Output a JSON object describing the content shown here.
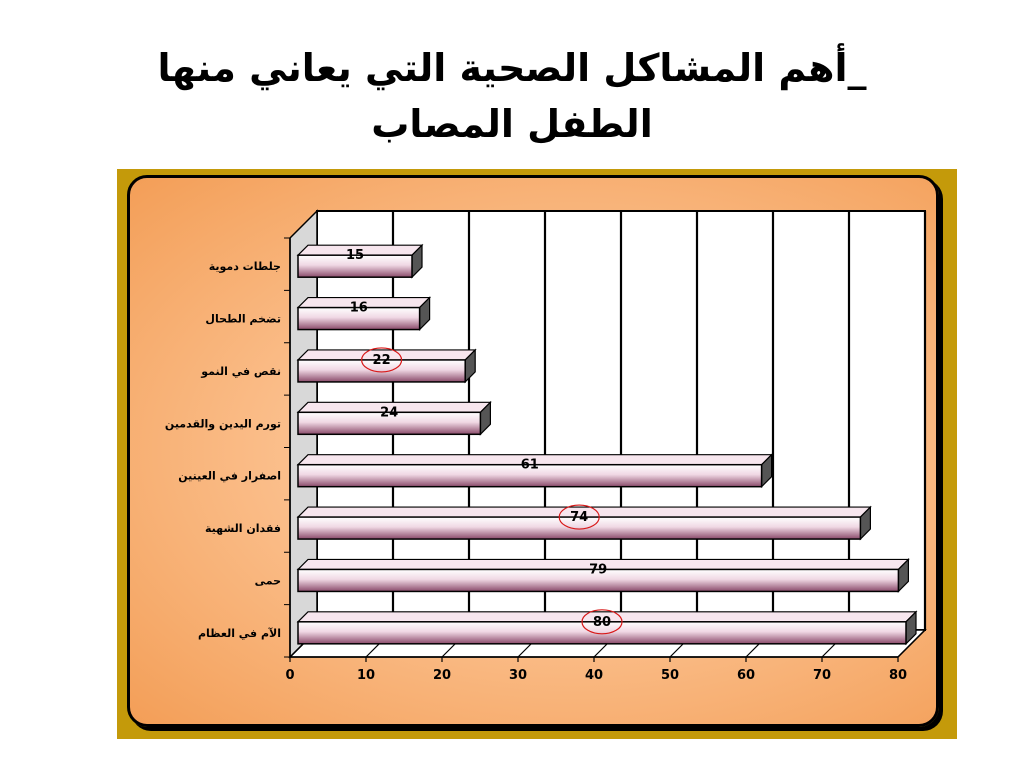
{
  "slide": {
    "title_line1": "أهم المشاكل الصحية التي يعاني منها",
    "title_dash": "_",
    "title_line2": "الطفل المصاب"
  },
  "colors": {
    "frame": "#c49a0a",
    "bar_light": "#ffffff",
    "bar_mid": "#f0d8e4",
    "bar_dark": "#8a4a6a",
    "bar_side": "#555555",
    "highlight_circle": "#d81818"
  },
  "chart_data": {
    "type": "bar",
    "orientation": "horizontal",
    "categories": [
      "جلطات دموية",
      "تضخم الطحال",
      "نقص في النمو",
      "تورم اليدين والقدمين",
      "اصفرار في العينين",
      "فقدان الشهية",
      "حمى",
      "الآم في العظام"
    ],
    "values": [
      15,
      16,
      22,
      24,
      61,
      74,
      79,
      80
    ],
    "highlighted": [
      22,
      74,
      80
    ],
    "xlim": [
      0,
      80
    ],
    "xticks": [
      0,
      10,
      20,
      30,
      40,
      50,
      60,
      70,
      80
    ],
    "grid": true,
    "three_d": true,
    "title": "",
    "xlabel": "",
    "ylabel": ""
  }
}
